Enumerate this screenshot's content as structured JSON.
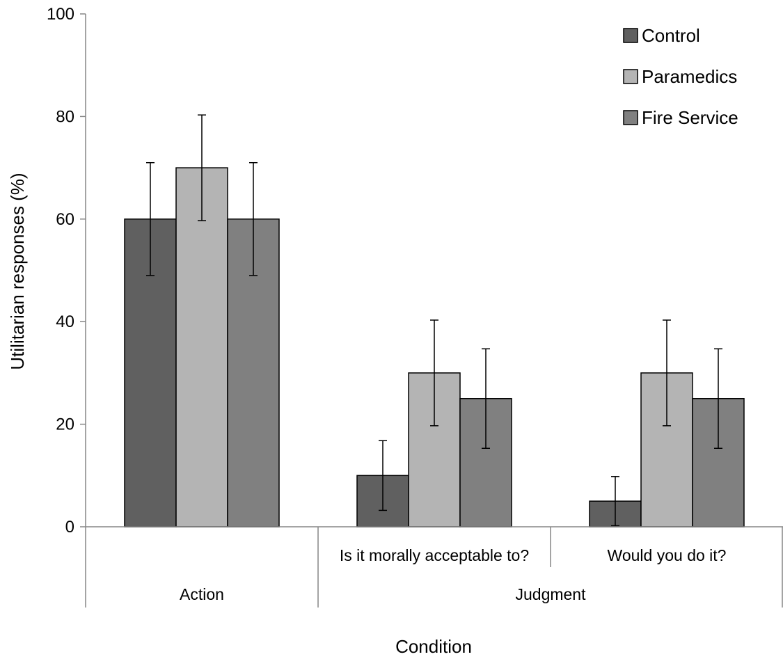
{
  "chart_data": {
    "type": "bar",
    "title": "",
    "ylabel": "Utilitarian responses (%)",
    "xlabel": "Condition",
    "ylim": [
      0,
      100
    ],
    "yticks": [
      0,
      20,
      40,
      60,
      80,
      100
    ],
    "grid": false,
    "legend_position": "top-right",
    "categories": [
      "Action",
      "Is it morally acceptable to?",
      "Would you do it?"
    ],
    "category_groups": [
      {
        "label": "Action",
        "members": [
          0
        ]
      },
      {
        "label": "Judgment",
        "members": [
          1,
          2
        ]
      }
    ],
    "series": [
      {
        "name": "Control",
        "color": "#606060",
        "values": [
          60,
          10,
          5
        ],
        "errors": [
          11,
          6.8,
          4.8
        ]
      },
      {
        "name": "Paramedics",
        "color": "#b4b4b4",
        "values": [
          70,
          30,
          30
        ],
        "errors": [
          10.3,
          10.3,
          10.3
        ]
      },
      {
        "name": "Fire Service",
        "color": "#808080",
        "values": [
          60,
          25,
          25
        ],
        "errors": [
          11,
          9.7,
          9.7
        ]
      }
    ]
  }
}
